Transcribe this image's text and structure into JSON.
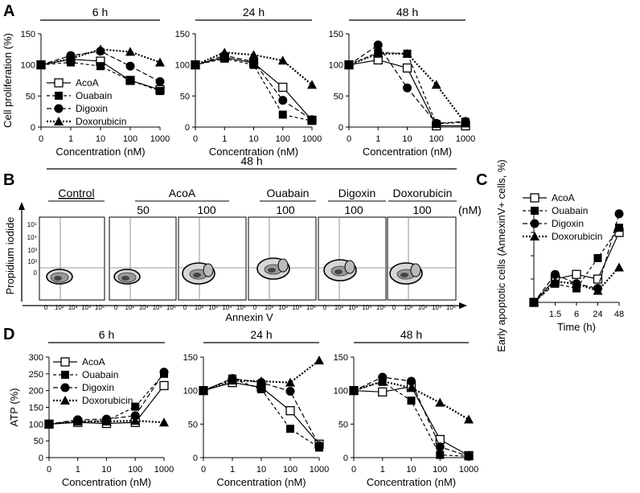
{
  "panels": {
    "A": "A",
    "B": "B",
    "C": "C",
    "D": "D"
  },
  "chart_data": [
    {
      "type": "line",
      "panel": "A",
      "title": "6 h",
      "xlabel": "Concentration (nM)",
      "ylabel": "Cell proliferation (%)",
      "categories": [
        "0",
        "1",
        "10",
        "100",
        "1000"
      ],
      "yticks": [
        "0",
        "50",
        "100",
        "150"
      ],
      "ylim": [
        0,
        150
      ],
      "series": [
        {
          "name": "AcoA",
          "values": [
            100,
            109,
            106,
            75,
            60
          ]
        },
        {
          "name": "Ouabain",
          "values": [
            100,
            104,
            98,
            75,
            58
          ]
        },
        {
          "name": "Digoxin",
          "values": [
            100,
            115,
            122,
            98,
            73
          ]
        },
        {
          "name": "Doxorubicin",
          "values": [
            100,
            110,
            125,
            121,
            104
          ]
        }
      ],
      "legend": [
        "AcoA",
        "Ouabain",
        "Digoxin",
        "Doxorubicin"
      ]
    },
    {
      "type": "line",
      "panel": "A",
      "title": "24 h",
      "xlabel": "Concentration (nM)",
      "ylabel": "",
      "categories": [
        "0",
        "1",
        "10",
        "100",
        "1000"
      ],
      "yticks": [
        "0",
        "50",
        "100",
        "150"
      ],
      "ylim": [
        0,
        150
      ],
      "series": [
        {
          "name": "AcoA",
          "values": [
            100,
            112,
            103,
            64,
            11
          ]
        },
        {
          "name": "Ouabain",
          "values": [
            100,
            110,
            100,
            20,
            10
          ]
        },
        {
          "name": "Digoxin",
          "values": [
            100,
            115,
            105,
            43,
            12
          ]
        },
        {
          "name": "Doxorubicin",
          "values": [
            100,
            120,
            116,
            107,
            68
          ]
        }
      ]
    },
    {
      "type": "line",
      "panel": "A",
      "title": "48 h",
      "xlabel": "Concentration (nM)",
      "ylabel": "",
      "categories": [
        "0",
        "1",
        "10",
        "100",
        "1000"
      ],
      "yticks": [
        "0",
        "50",
        "100",
        "150"
      ],
      "ylim": [
        0,
        150
      ],
      "series": [
        {
          "name": "AcoA",
          "values": [
            100,
            108,
            95,
            2,
            2
          ]
        },
        {
          "name": "Ouabain",
          "values": [
            100,
            120,
            118,
            5,
            8
          ]
        },
        {
          "name": "Digoxin",
          "values": [
            100,
            132,
            63,
            6,
            9
          ]
        },
        {
          "name": "Doxorubicin",
          "values": [
            100,
            118,
            118,
            68,
            6
          ]
        }
      ]
    },
    {
      "type": "line",
      "panel": "C",
      "title": "",
      "xlabel": "Time (h)",
      "ylabel": "Early apoptotic cells (AnnexinV+ cells, %)",
      "categories": [
        "",
        "1.5",
        "6",
        "24",
        "48"
      ],
      "yticks": [],
      "ylim": [
        0,
        20
      ],
      "series": [
        {
          "name": "AcoA",
          "values": [
            0,
            5,
            6,
            5,
            15
          ]
        },
        {
          "name": "Ouabain",
          "values": [
            0,
            4,
            3,
            9.5,
            16
          ]
        },
        {
          "name": "Digoxin",
          "values": [
            0,
            6,
            4,
            3,
            19
          ]
        },
        {
          "name": "Doxorubicin",
          "values": [
            0,
            4.5,
            4,
            2.5,
            7.5
          ]
        }
      ],
      "legend": [
        "AcoA",
        "Ouabain",
        "Digoxin",
        "Doxorubicin"
      ]
    },
    {
      "type": "line",
      "panel": "D",
      "title": "6 h",
      "xlabel": "Concentration (nM)",
      "ylabel": "ATP (%)",
      "categories": [
        "0",
        "1",
        "10",
        "100",
        "1000"
      ],
      "yticks": [
        "0",
        "50",
        "100",
        "150",
        "200",
        "250",
        "300"
      ],
      "ylim": [
        0,
        300
      ],
      "series": [
        {
          "name": "AcoA",
          "values": [
            100,
            105,
            102,
            105,
            215
          ]
        },
        {
          "name": "Ouabain",
          "values": [
            100,
            108,
            110,
            152,
            250
          ]
        },
        {
          "name": "Digoxin",
          "values": [
            100,
            113,
            115,
            125,
            255
          ]
        },
        {
          "name": "Doxorubicin",
          "values": [
            100,
            108,
            108,
            110,
            105
          ]
        }
      ],
      "legend": [
        "AcoA",
        "Ouabain",
        "Digoxin",
        "Doxorubicin"
      ]
    },
    {
      "type": "line",
      "panel": "D",
      "title": "24 h",
      "xlabel": "Concentration (nM)",
      "ylabel": "",
      "categories": [
        "0",
        "1",
        "10",
        "100",
        "1000"
      ],
      "yticks": [
        "0",
        "50",
        "100",
        "150"
      ],
      "ylim": [
        0,
        150
      ],
      "series": [
        {
          "name": "AcoA",
          "values": [
            100,
            112,
            105,
            70,
            20
          ]
        },
        {
          "name": "Ouabain",
          "values": [
            100,
            118,
            102,
            43,
            15
          ]
        },
        {
          "name": "Digoxin",
          "values": [
            100,
            118,
            112,
            99,
            18
          ]
        },
        {
          "name": "Doxorubicin",
          "values": [
            100,
            115,
            114,
            112,
            145
          ]
        }
      ]
    },
    {
      "type": "line",
      "panel": "D",
      "title": "48 h",
      "xlabel": "Concentration (nM)",
      "ylabel": "",
      "categories": [
        "0",
        "1",
        "10",
        "100",
        "1000"
      ],
      "yticks": [
        "0",
        "50",
        "100",
        "150"
      ],
      "ylim": [
        0,
        150
      ],
      "series": [
        {
          "name": "AcoA",
          "values": [
            100,
            98,
            106,
            27,
            3
          ]
        },
        {
          "name": "Ouabain",
          "values": [
            100,
            113,
            85,
            4,
            2
          ]
        },
        {
          "name": "Digoxin",
          "values": [
            100,
            120,
            114,
            16,
            2
          ]
        },
        {
          "name": "Doxorubicin",
          "values": [
            100,
            114,
            104,
            82,
            57
          ]
        }
      ]
    }
  ],
  "flow": {
    "title": "48 h",
    "groups": [
      {
        "label": "Control",
        "doses": [
          ""
        ]
      },
      {
        "label": "AcoA",
        "doses": [
          "50",
          "100"
        ]
      },
      {
        "label": "Ouabain",
        "doses": [
          "100"
        ]
      },
      {
        "label": "Digoxin",
        "doses": [
          "100"
        ]
      },
      {
        "label": "Doxorubicin",
        "doses": [
          "100"
        ]
      }
    ],
    "unit": "(nM)",
    "ylabel": "Propidium iodide",
    "xlabel": "Annexin V",
    "yticks": [
      "10⁵",
      "10⁴",
      "10³",
      "10²",
      "0"
    ],
    "xticks": [
      "0",
      "10²",
      "10³",
      "10⁴",
      "10⁵"
    ]
  }
}
